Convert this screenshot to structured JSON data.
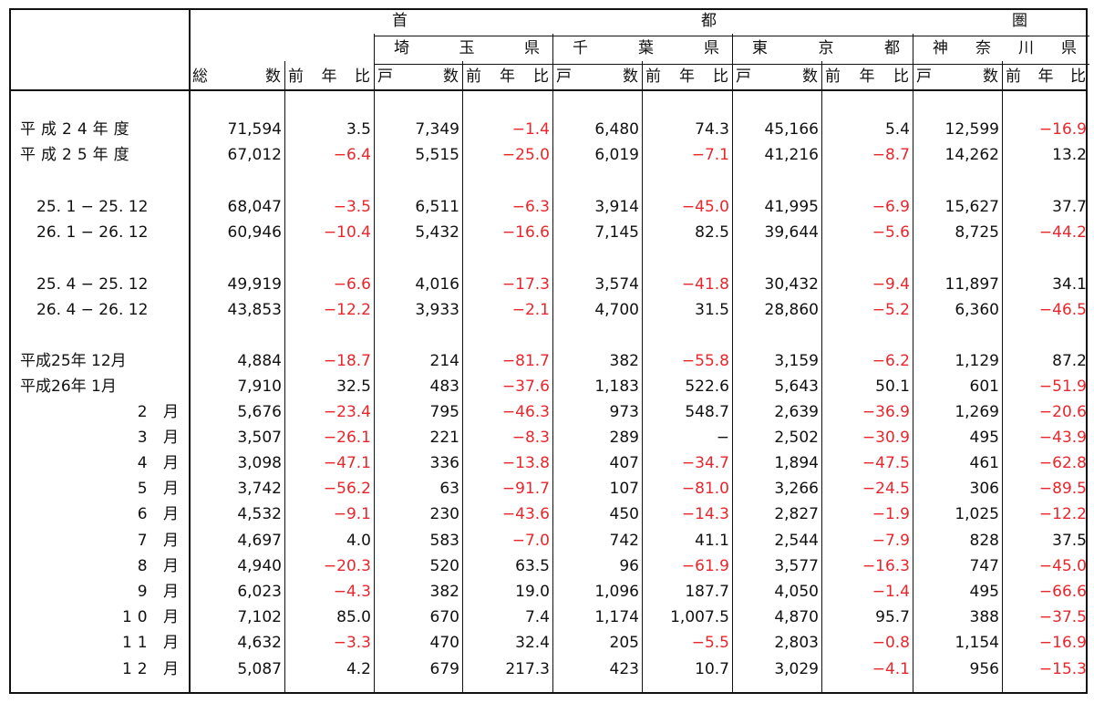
{
  "header": {
    "group_chars": [
      "首",
      "都",
      "圏"
    ],
    "prefectures": [
      [
        "埼",
        "玉",
        "県"
      ],
      [
        "千",
        "葉",
        "県"
      ],
      [
        "東",
        "京",
        "都"
      ],
      [
        "神",
        "奈",
        "川",
        "県"
      ]
    ],
    "total_label": [
      "総",
      "数"
    ],
    "yoy_label": [
      "前",
      "年",
      "比"
    ],
    "units_label": [
      "戸",
      "数"
    ]
  },
  "rows": [
    {
      "label": "平成24年度",
      "values": [
        "71,594",
        "3.5",
        "7,349",
        "−1.4",
        "6,480",
        "74.3",
        "45,166",
        "5.4",
        "12,599",
        "−16.9"
      ]
    },
    {
      "label": "平成25年度",
      "values": [
        "67,012",
        "−6.4",
        "5,515",
        "−25.0",
        "6,019",
        "−7.1",
        "41,216",
        "−8.7",
        "14,262",
        "13.2"
      ]
    },
    {
      "label": "25. 1 − 25. 12",
      "values": [
        "68,047",
        "−3.5",
        "6,511",
        "−6.3",
        "3,914",
        "−45.0",
        "41,995",
        "−6.9",
        "15,627",
        "37.7"
      ]
    },
    {
      "label": "26. 1 − 26. 12",
      "values": [
        "60,946",
        "−10.4",
        "5,432",
        "−16.6",
        "7,145",
        "82.5",
        "39,644",
        "−5.6",
        "8,725",
        "−44.2"
      ]
    },
    {
      "label": "25. 4 − 25. 12",
      "values": [
        "49,919",
        "−6.6",
        "4,016",
        "−17.3",
        "3,574",
        "−41.8",
        "30,432",
        "−9.4",
        "11,897",
        "34.1"
      ]
    },
    {
      "label": "26. 4 − 26. 12",
      "values": [
        "43,853",
        "−12.2",
        "3,933",
        "−2.1",
        "4,700",
        "31.5",
        "28,860",
        "−5.2",
        "6,360",
        "−46.5"
      ]
    },
    {
      "label": "平成25年 12月",
      "values": [
        "4,884",
        "−18.7",
        "214",
        "−81.7",
        "382",
        "−55.8",
        "3,159",
        "−6.2",
        "1,129",
        "87.2"
      ]
    },
    {
      "label": "平成26年 1月",
      "values": [
        "7,910",
        "32.5",
        "483",
        "−37.6",
        "1,183",
        "522.6",
        "5,643",
        "50.1",
        "601",
        "−51.9"
      ]
    },
    {
      "label": "2 月",
      "values": [
        "5,676",
        "−23.4",
        "795",
        "−46.3",
        "973",
        "548.7",
        "2,639",
        "−36.9",
        "1,269",
        "−20.6"
      ]
    },
    {
      "label": "3 月",
      "values": [
        "3,507",
        "−26.1",
        "221",
        "−8.3",
        "289",
        "−",
        "2,502",
        "−30.9",
        "495",
        "−43.9"
      ]
    },
    {
      "label": "4 月",
      "values": [
        "3,098",
        "−47.1",
        "336",
        "−13.8",
        "407",
        "−34.7",
        "1,894",
        "−47.5",
        "461",
        "−62.8"
      ]
    },
    {
      "label": "5 月",
      "values": [
        "3,742",
        "−56.2",
        "63",
        "−91.7",
        "107",
        "−81.0",
        "3,266",
        "−24.5",
        "306",
        "−89.5"
      ]
    },
    {
      "label": "6 月",
      "values": [
        "4,532",
        "−9.1",
        "230",
        "−43.6",
        "450",
        "−14.3",
        "2,827",
        "−1.9",
        "1,025",
        "−12.2"
      ]
    },
    {
      "label": "7 月",
      "values": [
        "4,697",
        "4.0",
        "583",
        "−7.0",
        "742",
        "41.1",
        "2,544",
        "−7.9",
        "828",
        "37.5"
      ]
    },
    {
      "label": "8 月",
      "values": [
        "4,940",
        "−20.3",
        "520",
        "63.5",
        "96",
        "−61.9",
        "3,577",
        "−16.3",
        "747",
        "−45.0"
      ]
    },
    {
      "label": "9 月",
      "values": [
        "6,023",
        "−4.3",
        "382",
        "19.0",
        "1,096",
        "187.7",
        "4,050",
        "−1.4",
        "495",
        "−66.6"
      ]
    },
    {
      "label": "10 月",
      "values": [
        "7,102",
        "85.0",
        "670",
        "7.4",
        "1,174",
        "1,007.5",
        "4,870",
        "95.7",
        "388",
        "−37.5"
      ]
    },
    {
      "label": "11 月",
      "values": [
        "4,632",
        "−3.3",
        "470",
        "32.4",
        "205",
        "−5.5",
        "2,803",
        "−0.8",
        "1,154",
        "−16.9"
      ]
    },
    {
      "label": "12 月",
      "values": [
        "5,087",
        "4.2",
        "679",
        "217.3",
        "423",
        "10.7",
        "3,029",
        "−4.1",
        "956",
        "−15.3"
      ]
    }
  ],
  "colors": {
    "negative": "#e8262b",
    "text": "#111111",
    "border": "#111111"
  }
}
